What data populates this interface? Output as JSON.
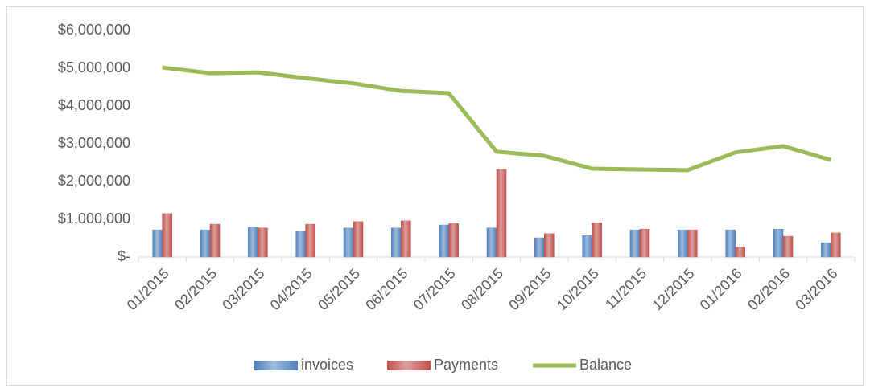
{
  "chart_data": {
    "type": "bar_line",
    "categories": [
      "01/2015",
      "02/2015",
      "03/2015",
      "04/2015",
      "05/2015",
      "06/2015",
      "07/2015",
      "08/2015",
      "09/2015",
      "10/2015",
      "11/2015",
      "12/2015",
      "01/2016",
      "02/2016",
      "03/2016"
    ],
    "series": [
      {
        "name": "invoices",
        "type": "bar",
        "color": "#4f81bd",
        "values": [
          720000,
          720000,
          790000,
          680000,
          770000,
          770000,
          850000,
          770000,
          510000,
          570000,
          720000,
          720000,
          720000,
          740000,
          380000
        ]
      },
      {
        "name": "Payments",
        "type": "bar",
        "color": "#c0504d",
        "values": [
          1150000,
          870000,
          770000,
          870000,
          940000,
          960000,
          890000,
          2320000,
          620000,
          910000,
          740000,
          720000,
          260000,
          550000,
          640000
        ]
      },
      {
        "name": "Balance",
        "type": "line",
        "color": "#9bbb59",
        "values": [
          5020000,
          4870000,
          4890000,
          4740000,
          4600000,
          4400000,
          4340000,
          2790000,
          2680000,
          2340000,
          2320000,
          2300000,
          2770000,
          2940000,
          2570000
        ]
      }
    ],
    "ylim": [
      0,
      6000000
    ],
    "yticks": [
      {
        "value": 0,
        "label": "$-"
      },
      {
        "value": 1000000,
        "label": "$1,000,000"
      },
      {
        "value": 2000000,
        "label": "$2,000,000"
      },
      {
        "value": 3000000,
        "label": "$3,000,000"
      },
      {
        "value": 4000000,
        "label": "$4,000,000"
      },
      {
        "value": 5000000,
        "label": "$5,000,000"
      },
      {
        "value": 6000000,
        "label": "$6,000,000"
      }
    ],
    "grid": false,
    "legend": "bottom"
  }
}
